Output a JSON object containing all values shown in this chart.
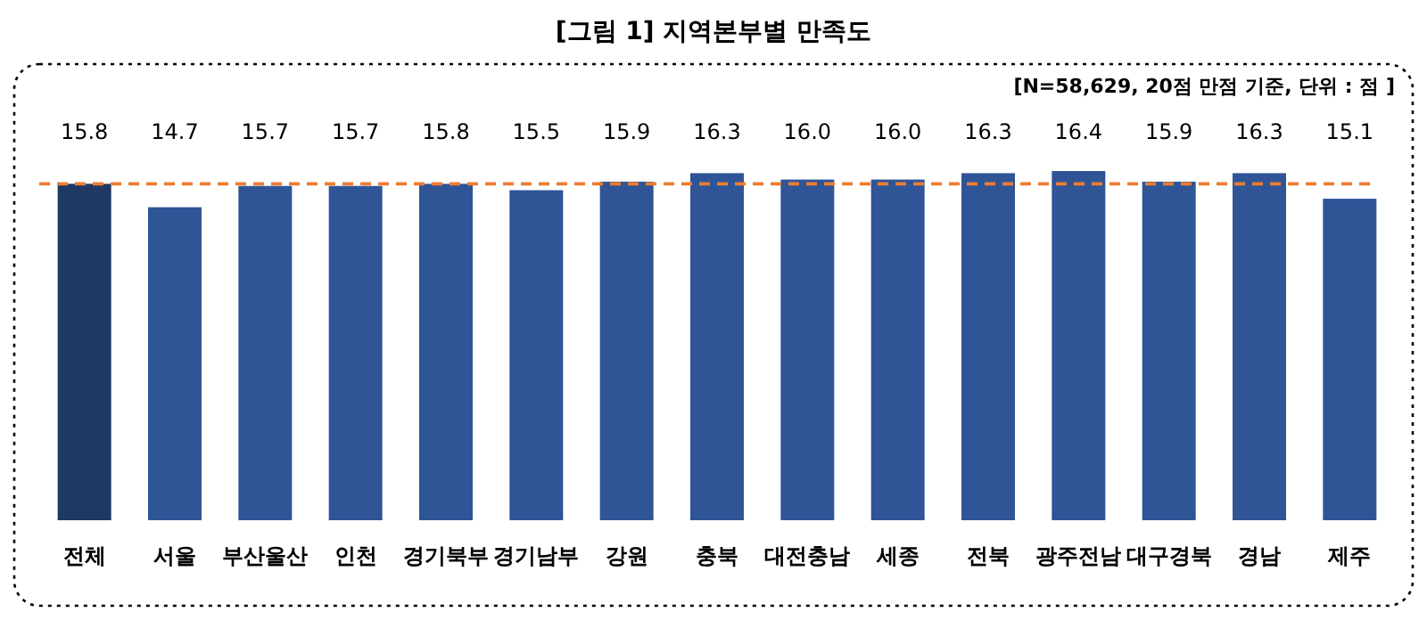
{
  "chart_data": {
    "type": "bar",
    "title": "[그림 1] 지역본부별 만족도",
    "annotations": [
      "[N=58,629, 20점 만점 기준, 단위 : 점 ]"
    ],
    "categories": [
      "전체",
      "서울",
      "부산울산",
      "인천",
      "경기북부",
      "경기남부",
      "강원",
      "충북",
      "대전충남",
      "세종",
      "전북",
      "광주전남",
      "대구경북",
      "경남",
      "제주"
    ],
    "values": [
      15.8,
      14.7,
      15.7,
      15.7,
      15.8,
      15.5,
      15.9,
      16.3,
      16.0,
      16.0,
      16.3,
      16.4,
      15.9,
      16.3,
      15.1
    ],
    "colors": [
      "#1f3864",
      "#2f5597",
      "#2f5597",
      "#2f5597",
      "#2f5597",
      "#2f5597",
      "#2f5597",
      "#2f5597",
      "#2f5597",
      "#2f5597",
      "#2f5597",
      "#2f5597",
      "#2f5597",
      "#2f5597",
      "#2f5597"
    ],
    "value_labels": [
      "15.8",
      "14.7",
      "15.7",
      "15.7",
      "15.8",
      "15.5",
      "15.9",
      "16.3",
      "16.0",
      "16.0",
      "16.3",
      "16.4",
      "15.9",
      "16.3",
      "15.1"
    ],
    "ref_lines": [
      {
        "axis": "y",
        "value": 15.8,
        "color": "#ed7d31",
        "line_style": "dashed"
      }
    ]
  }
}
